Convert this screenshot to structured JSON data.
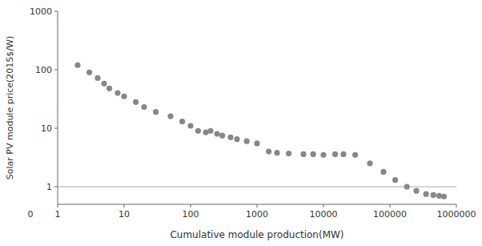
{
  "chart_data": {
    "type": "scatter",
    "x": [
      2,
      3,
      4,
      5,
      6,
      8,
      10,
      15,
      20,
      30,
      50,
      75,
      100,
      130,
      170,
      200,
      250,
      300,
      400,
      500,
      700,
      1000,
      1500,
      2000,
      3000,
      5000,
      7000,
      10000,
      15000,
      20000,
      30000,
      50000,
      80000,
      120000,
      180000,
      250000,
      350000,
      450000,
      550000,
      650000
    ],
    "y": [
      120,
      90,
      72,
      58,
      48,
      40,
      35,
      28,
      23,
      19,
      16,
      13,
      11,
      9,
      8.5,
      9,
      8,
      7.5,
      7,
      6.5,
      6,
      5.5,
      4,
      3.8,
      3.7,
      3.6,
      3.6,
      3.5,
      3.6,
      3.6,
      3.5,
      2.5,
      1.8,
      1.3,
      1.0,
      0.85,
      0.75,
      0.72,
      0.7,
      0.68
    ],
    "xlabel": "Cumulative module production(MW)",
    "ylabel": "Solar PV module price(2015$/W)",
    "xlim": [
      1,
      1000000
    ],
    "ylim": [
      0.5,
      1000
    ],
    "xticks": [
      1,
      10,
      100,
      1000,
      10000,
      100000,
      1000000
    ],
    "yticks": [
      1,
      10,
      100,
      1000
    ],
    "log": true,
    "grid": false,
    "color": "#888888",
    "reference_line": {
      "value": 1.0,
      "color": "#aaaaaa"
    },
    "annotations": [
      {
        "text": "0"
      }
    ]
  }
}
